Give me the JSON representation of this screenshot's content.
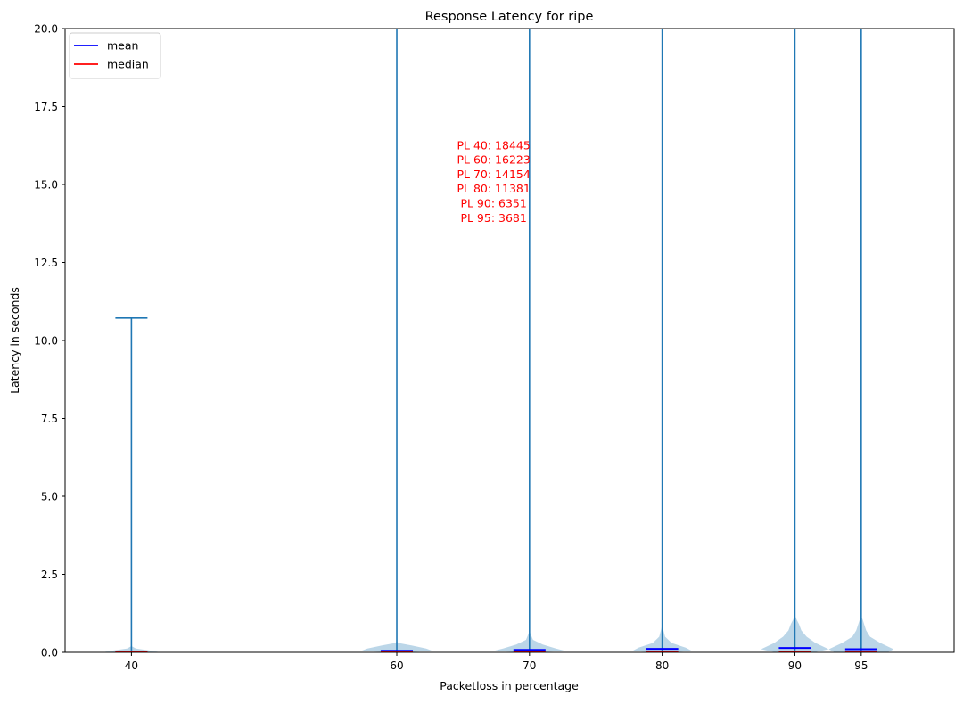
{
  "chart_data": {
    "type": "violin",
    "title": "Response Latency for ripe",
    "xlabel": "Packetloss in percentage",
    "ylabel": "Latency in seconds",
    "xlim": [
      35,
      102
    ],
    "ylim": [
      0,
      20
    ],
    "yticks": [
      0.0,
      2.5,
      5.0,
      7.5,
      10.0,
      12.5,
      15.0,
      17.5,
      20.0
    ],
    "ytick_labels": [
      "0.0",
      "2.5",
      "5.0",
      "7.5",
      "10.0",
      "12.5",
      "15.0",
      "17.5",
      "20.0"
    ],
    "categories": [
      "40",
      "60",
      "70",
      "80",
      "90",
      "95"
    ],
    "x": [
      40,
      60,
      70,
      80,
      90,
      95
    ],
    "max": [
      10.72,
      20,
      20,
      20,
      20,
      20
    ],
    "mean": [
      0.03,
      0.05,
      0.08,
      0.11,
      0.14,
      0.1
    ],
    "median": [
      0.01,
      0.01,
      0.02,
      0.02,
      0.01,
      0.01
    ],
    "violin_profile": [
      [
        [
          0,
          0.06
        ],
        [
          0.02,
          0.9
        ],
        [
          0.06,
          0.6
        ],
        [
          0.12,
          0.15
        ],
        [
          0.2,
          0.0
        ]
      ],
      [
        [
          0,
          0.26
        ],
        [
          0.05,
          1.2
        ],
        [
          0.12,
          1.0
        ],
        [
          0.22,
          0.5
        ],
        [
          0.3,
          0.05
        ],
        [
          0.35,
          0.0
        ]
      ],
      [
        [
          0,
          0.3
        ],
        [
          0.05,
          1.2
        ],
        [
          0.12,
          0.9
        ],
        [
          0.25,
          0.45
        ],
        [
          0.4,
          0.12
        ],
        [
          0.6,
          0.03
        ],
        [
          0.75,
          0.0
        ]
      ],
      [
        [
          0,
          0.35
        ],
        [
          0.05,
          1.0
        ],
        [
          0.15,
          0.8
        ],
        [
          0.3,
          0.32
        ],
        [
          0.5,
          0.1
        ],
        [
          0.75,
          0.03
        ],
        [
          0.9,
          0.0
        ]
      ],
      [
        [
          0,
          0.65
        ],
        [
          0.1,
          1.15
        ],
        [
          0.3,
          0.7
        ],
        [
          0.5,
          0.4
        ],
        [
          0.7,
          0.22
        ],
        [
          0.9,
          0.14
        ],
        [
          1.05,
          0.06
        ],
        [
          1.2,
          0.0
        ]
      ],
      [
        [
          0,
          0.9
        ],
        [
          0.1,
          1.1
        ],
        [
          0.3,
          0.65
        ],
        [
          0.5,
          0.3
        ],
        [
          0.7,
          0.17
        ],
        [
          0.9,
          0.1
        ],
        [
          1.05,
          0.05
        ],
        [
          1.15,
          0.0
        ]
      ]
    ],
    "legend": [
      {
        "label": "mean",
        "color": "#0000ff"
      },
      {
        "label": "median",
        "color": "#ff0000"
      }
    ],
    "legend_position": "upper-left",
    "annotation": {
      "lines": [
        "PL 40: 18445",
        "PL 60: 16223",
        "PL 70: 14154",
        "PL 80: 11381",
        "PL 90: 6351",
        "PL 95: 3681"
      ],
      "color": "#ff0000",
      "x": 67.3,
      "y": 15.1
    },
    "colors": {
      "violin_fill": "#1f77b4",
      "violin_line": "#1f77b4",
      "mean": "#0000ff",
      "median": "#ff0000"
    },
    "grid": false
  }
}
